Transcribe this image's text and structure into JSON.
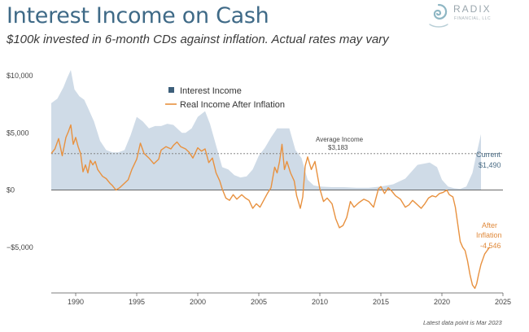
{
  "header": {
    "title": "Interest Income on Cash",
    "subtitle": "$100k invested in 6-month CDs against inflation. Actual rates may vary"
  },
  "logo": {
    "wordmark": "RADIX",
    "tagline": "FINANCIAL, LLC"
  },
  "footnote": "Latest data point is Mar 2023",
  "colors": {
    "interest_fill": "#cfdbe7",
    "real_line": "#e8913f",
    "title": "#3f6a87",
    "legend_square": "#3d5f7a"
  },
  "chart_data": {
    "type": "area",
    "xlim": [
      1988,
      2025
    ],
    "ylim": [
      -9000,
      11000
    ],
    "x_ticks": [
      1990,
      1995,
      2000,
      2005,
      2010,
      2015,
      2020,
      2025
    ],
    "y_ticks": [
      {
        "value": 10000,
        "label": "$10,000"
      },
      {
        "value": 5000,
        "label": "$5,000"
      },
      {
        "value": 0,
        "label": "$0"
      },
      {
        "value": -5000,
        "label": "−$5,000"
      }
    ],
    "legend": {
      "placement": "top-center",
      "entries": [
        "Interest Income",
        "Real Income After Inflation"
      ]
    },
    "series": [
      {
        "name": "Interest Income",
        "type": "area",
        "points": [
          [
            1988.0,
            7600
          ],
          [
            1988.5,
            8000
          ],
          [
            1989.0,
            9000
          ],
          [
            1989.3,
            9800
          ],
          [
            1989.6,
            10500
          ],
          [
            1989.9,
            8800
          ],
          [
            1990.3,
            8200
          ],
          [
            1990.7,
            7900
          ],
          [
            1991.0,
            7200
          ],
          [
            1991.5,
            6000
          ],
          [
            1992.0,
            4300
          ],
          [
            1992.5,
            3500
          ],
          [
            1993.0,
            3300
          ],
          [
            1993.5,
            3300
          ],
          [
            1994.0,
            3500
          ],
          [
            1994.5,
            4800
          ],
          [
            1995.0,
            6400
          ],
          [
            1995.5,
            6000
          ],
          [
            1996.0,
            5400
          ],
          [
            1996.5,
            5600
          ],
          [
            1997.0,
            5600
          ],
          [
            1997.5,
            5800
          ],
          [
            1998.0,
            5700
          ],
          [
            1998.7,
            5000
          ],
          [
            1999.0,
            5000
          ],
          [
            1999.5,
            5400
          ],
          [
            2000.0,
            6400
          ],
          [
            2000.6,
            6900
          ],
          [
            2001.0,
            5800
          ],
          [
            2001.5,
            3900
          ],
          [
            2002.0,
            2000
          ],
          [
            2002.5,
            1800
          ],
          [
            2003.0,
            1300
          ],
          [
            2003.5,
            1100
          ],
          [
            2004.0,
            1200
          ],
          [
            2004.5,
            1800
          ],
          [
            2005.0,
            3000
          ],
          [
            2005.5,
            3700
          ],
          [
            2006.0,
            4600
          ],
          [
            2006.5,
            5400
          ],
          [
            2007.0,
            5400
          ],
          [
            2007.5,
            5400
          ],
          [
            2008.0,
            3500
          ],
          [
            2008.5,
            2800
          ],
          [
            2009.0,
            900
          ],
          [
            2009.5,
            400
          ],
          [
            2010.0,
            300
          ],
          [
            2011.0,
            250
          ],
          [
            2012.0,
            250
          ],
          [
            2013.0,
            200
          ],
          [
            2014.0,
            200
          ],
          [
            2015.0,
            300
          ],
          [
            2016.0,
            500
          ],
          [
            2017.0,
            1000
          ],
          [
            2018.0,
            2200
          ],
          [
            2019.0,
            2400
          ],
          [
            2019.6,
            2000
          ],
          [
            2020.0,
            900
          ],
          [
            2020.5,
            300
          ],
          [
            2021.0,
            150
          ],
          [
            2021.5,
            100
          ],
          [
            2022.0,
            300
          ],
          [
            2022.5,
            1500
          ],
          [
            2022.8,
            3000
          ],
          [
            2023.2,
            4900
          ]
        ]
      },
      {
        "name": "Real Income After Inflation",
        "type": "line",
        "points": [
          [
            1988.0,
            3200
          ],
          [
            1988.3,
            3600
          ],
          [
            1988.6,
            4500
          ],
          [
            1988.9,
            3000
          ],
          [
            1989.2,
            4600
          ],
          [
            1989.4,
            5100
          ],
          [
            1989.6,
            5700
          ],
          [
            1989.8,
            4000
          ],
          [
            1990.0,
            4600
          ],
          [
            1990.2,
            3800
          ],
          [
            1990.4,
            3200
          ],
          [
            1990.6,
            1600
          ],
          [
            1990.8,
            2200
          ],
          [
            1991.0,
            1500
          ],
          [
            1991.2,
            2600
          ],
          [
            1991.4,
            2200
          ],
          [
            1991.6,
            2500
          ],
          [
            1991.8,
            1800
          ],
          [
            1992.0,
            1500
          ],
          [
            1992.2,
            1200
          ],
          [
            1992.5,
            1000
          ],
          [
            1992.8,
            600
          ],
          [
            1993.0,
            400
          ],
          [
            1993.3,
            0
          ],
          [
            1993.6,
            200
          ],
          [
            1994.0,
            600
          ],
          [
            1994.3,
            900
          ],
          [
            1994.6,
            1800
          ],
          [
            1995.0,
            2700
          ],
          [
            1995.3,
            4100
          ],
          [
            1995.6,
            3200
          ],
          [
            1996.0,
            2800
          ],
          [
            1996.4,
            2300
          ],
          [
            1996.8,
            2700
          ],
          [
            1997.0,
            3500
          ],
          [
            1997.4,
            3800
          ],
          [
            1997.8,
            3600
          ],
          [
            1998.0,
            3900
          ],
          [
            1998.3,
            4200
          ],
          [
            1998.6,
            3800
          ],
          [
            1999.0,
            3600
          ],
          [
            1999.3,
            3300
          ],
          [
            1999.6,
            2800
          ],
          [
            2000.0,
            3700
          ],
          [
            2000.3,
            3400
          ],
          [
            2000.6,
            3600
          ],
          [
            2000.9,
            2400
          ],
          [
            2001.2,
            2800
          ],
          [
            2001.5,
            1500
          ],
          [
            2001.8,
            800
          ],
          [
            2002.0,
            100
          ],
          [
            2002.3,
            -700
          ],
          [
            2002.6,
            -900
          ],
          [
            2002.9,
            -400
          ],
          [
            2003.2,
            -800
          ],
          [
            2003.6,
            -400
          ],
          [
            2003.9,
            -700
          ],
          [
            2004.2,
            -900
          ],
          [
            2004.5,
            -1600
          ],
          [
            2004.8,
            -1200
          ],
          [
            2005.1,
            -1500
          ],
          [
            2005.4,
            -900
          ],
          [
            2005.7,
            -300
          ],
          [
            2006.0,
            200
          ],
          [
            2006.3,
            2000
          ],
          [
            2006.5,
            1500
          ],
          [
            2006.7,
            2500
          ],
          [
            2006.9,
            4000
          ],
          [
            2007.1,
            1800
          ],
          [
            2007.3,
            2500
          ],
          [
            2007.6,
            1500
          ],
          [
            2007.9,
            800
          ],
          [
            2008.1,
            -500
          ],
          [
            2008.4,
            -1600
          ],
          [
            2008.6,
            -600
          ],
          [
            2008.8,
            2100
          ],
          [
            2009.0,
            2900
          ],
          [
            2009.3,
            1800
          ],
          [
            2009.6,
            2500
          ],
          [
            2010.0,
            100
          ],
          [
            2010.3,
            -1000
          ],
          [
            2010.6,
            -700
          ],
          [
            2011.0,
            -1200
          ],
          [
            2011.3,
            -2500
          ],
          [
            2011.6,
            -3300
          ],
          [
            2011.9,
            -3100
          ],
          [
            2012.2,
            -2400
          ],
          [
            2012.5,
            -1000
          ],
          [
            2012.8,
            -1500
          ],
          [
            2013.2,
            -1100
          ],
          [
            2013.6,
            -800
          ],
          [
            2014.0,
            -1000
          ],
          [
            2014.4,
            -1500
          ],
          [
            2014.8,
            100
          ],
          [
            2015.0,
            300
          ],
          [
            2015.3,
            -300
          ],
          [
            2015.6,
            200
          ],
          [
            2015.9,
            -100
          ],
          [
            2016.2,
            -500
          ],
          [
            2016.6,
            -800
          ],
          [
            2017.0,
            -1500
          ],
          [
            2017.3,
            -1300
          ],
          [
            2017.6,
            -900
          ],
          [
            2018.0,
            -1300
          ],
          [
            2018.3,
            -1600
          ],
          [
            2018.6,
            -1200
          ],
          [
            2018.9,
            -700
          ],
          [
            2019.2,
            -500
          ],
          [
            2019.5,
            -600
          ],
          [
            2019.8,
            -300
          ],
          [
            2020.1,
            -200
          ],
          [
            2020.4,
            0
          ],
          [
            2020.6,
            -400
          ],
          [
            2020.9,
            -600
          ],
          [
            2021.1,
            -1500
          ],
          [
            2021.3,
            -3000
          ],
          [
            2021.5,
            -4500
          ],
          [
            2021.7,
            -5000
          ],
          [
            2021.9,
            -5300
          ],
          [
            2022.1,
            -6200
          ],
          [
            2022.3,
            -7400
          ],
          [
            2022.5,
            -8300
          ],
          [
            2022.7,
            -8600
          ],
          [
            2022.85,
            -8200
          ],
          [
            2023.0,
            -7400
          ],
          [
            2023.2,
            -6500
          ],
          [
            2023.5,
            -5600
          ],
          [
            2023.7,
            -5300
          ],
          [
            2023.9,
            -5000
          ]
        ]
      }
    ],
    "reference_line": {
      "value": 3183,
      "label": "Average Income",
      "value_label": "$3,183"
    },
    "annotations": {
      "current": {
        "label": "Current",
        "value": "$1,490"
      },
      "after_inflation": {
        "line1": "After",
        "line2": "Inflation",
        "value": "-4,546"
      }
    }
  }
}
